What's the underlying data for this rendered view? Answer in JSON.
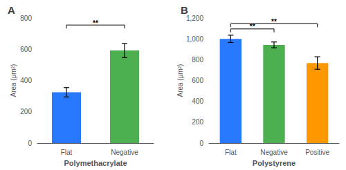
{
  "chart_data": [
    {
      "type": "bar",
      "title": "A",
      "categories": [
        "Flat",
        "Negative"
      ],
      "values": [
        325,
        592
      ],
      "errors": [
        30,
        45
      ],
      "colors": [
        "#2979FF",
        "#4CAF50"
      ],
      "ylabel": "Area (μm²)",
      "xlabel": "Polymethacrylate",
      "ylim": [
        0,
        800
      ],
      "yticks": [
        0,
        200,
        400,
        600,
        800
      ],
      "grid": false,
      "annotations": [
        {
          "text": "**",
          "from": "Flat",
          "to": "Negative",
          "y": 755
        }
      ]
    },
    {
      "type": "bar",
      "title": "B",
      "categories": [
        "Flat",
        "Negative",
        "Positive"
      ],
      "values": [
        1000,
        942,
        768
      ],
      "errors": [
        35,
        28,
        60
      ],
      "colors": [
        "#2979FF",
        "#4CAF50",
        "#FF9800"
      ],
      "ylabel": "Area (μm²)",
      "xlabel": "Polystyrene",
      "ylim": [
        0,
        1200
      ],
      "yticks": [
        0,
        200,
        400,
        600,
        800,
        {
          "value": 1000,
          "label": "1,000"
        },
        {
          "value": 1200,
          "label": "1,200"
        }
      ],
      "grid": false,
      "annotations": [
        {
          "text": "**",
          "from": "Flat",
          "to": "Negative",
          "y": 1095
        },
        {
          "text": "**",
          "from": "Flat",
          "to": "Positive",
          "y": 1145
        }
      ]
    }
  ]
}
